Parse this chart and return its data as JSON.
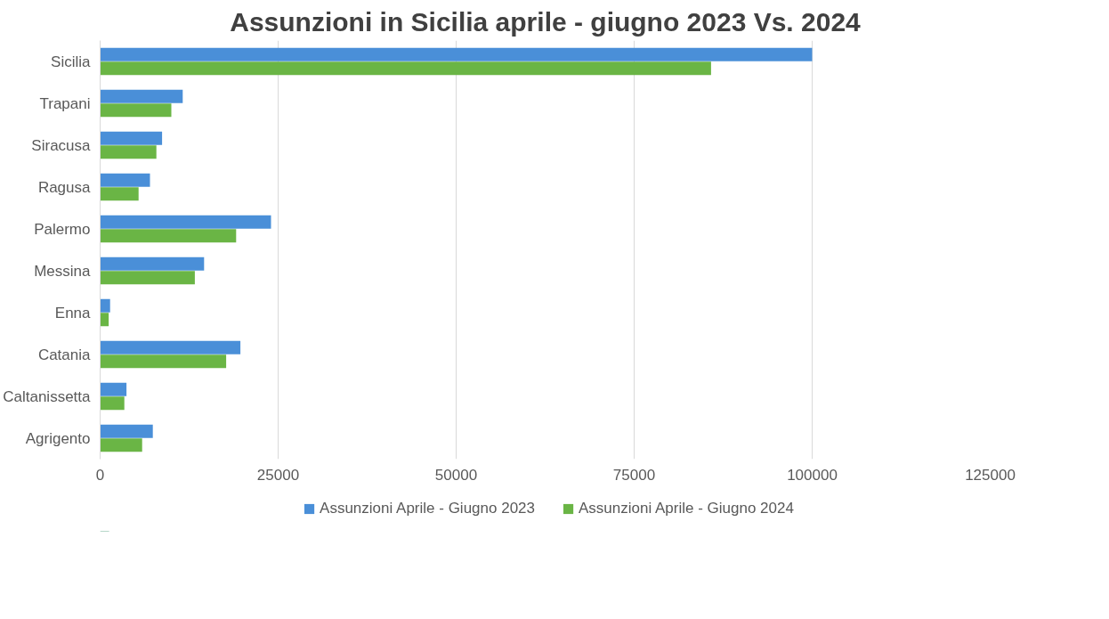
{
  "chart_data": {
    "type": "bar",
    "orientation": "horizontal",
    "title": "Assunzioni in Sicilia aprile - giugno 2023 Vs. 2024",
    "categories": [
      "Sicilia",
      "Trapani",
      "Siracusa",
      "Ragusa",
      "Palermo",
      "Messina",
      "Enna",
      "Catania",
      "Caltanissetta",
      "Agrigento"
    ],
    "series": [
      {
        "name": "Assunzioni Aprile - Giugno 2023",
        "color": "#4a8fd8",
        "values": [
          100000,
          11600,
          8700,
          7000,
          24000,
          14600,
          1400,
          19700,
          3700,
          7400
        ]
      },
      {
        "name": "Assunzioni Aprile - Giugno 2024",
        "color": "#6ab545",
        "values": [
          85800,
          10000,
          7900,
          5400,
          19100,
          13300,
          1200,
          17700,
          3400,
          5900
        ]
      }
    ],
    "xlim": [
      0,
      125000
    ],
    "xticks": [
      0,
      25000,
      50000,
      75000,
      100000,
      125000
    ],
    "grid": "x",
    "legend": "bottom"
  }
}
